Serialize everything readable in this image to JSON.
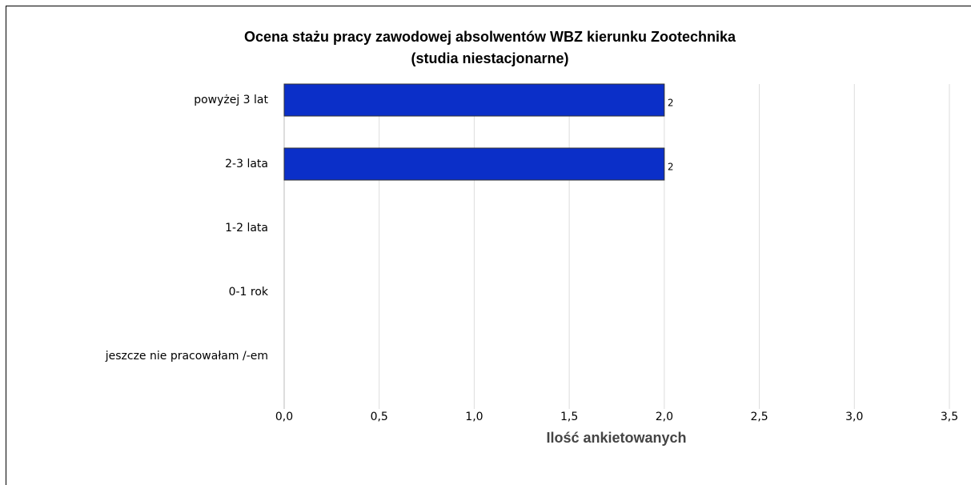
{
  "chart_data": {
    "type": "bar",
    "orientation": "horizontal",
    "title": "Ocena stażu pracy zawodowej absolwentów WBZ kierunku Zootechnika",
    "subtitle": "(studia niestacjonarne)",
    "x_label": "Ilość ankietowanych",
    "categories": [
      "powyżej 3 lat",
      "2-3 lata",
      "1-2 lata",
      "0-1 rok",
      "jeszcze nie pracowałam /-em"
    ],
    "values": [
      2,
      2,
      0,
      0,
      0
    ],
    "color": "#0b2fc8",
    "xlim": [
      0,
      3.5
    ],
    "xticks": [
      {
        "value": 0,
        "label": "0,0"
      },
      {
        "value": 0.5,
        "label": "0,5"
      },
      {
        "value": 1,
        "label": "1,0"
      },
      {
        "value": 1.5,
        "label": "1,5"
      },
      {
        "value": 2,
        "label": "2,0"
      },
      {
        "value": 2.5,
        "label": "2,5"
      },
      {
        "value": 3,
        "label": "3,0"
      },
      {
        "value": 3.5,
        "label": "3,5"
      }
    ],
    "grid": true
  }
}
